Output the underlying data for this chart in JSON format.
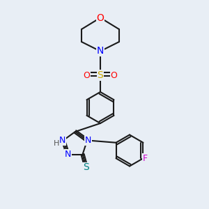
{
  "background_color": "#e8eef5",
  "bond_color": "#1a1a1a",
  "bond_lw": 1.5,
  "atom_colors": {
    "O": "#ff0000",
    "N": "#0000ff",
    "S_sulfonyl": "#ccaa00",
    "S_thiol": "#008080",
    "F": "#cc00cc",
    "C": "#1a1a1a",
    "H": "#555555"
  },
  "font_size": 9,
  "fig_size": [
    3.0,
    3.0
  ],
  "dpi": 100
}
